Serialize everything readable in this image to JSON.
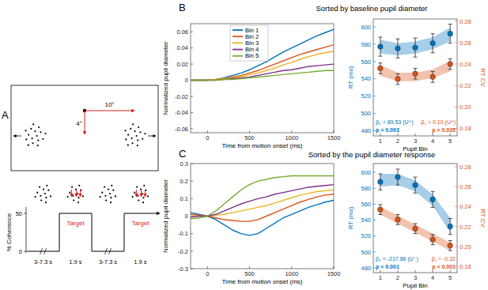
{
  "panel_a": {
    "label": "A",
    "horizontal_offset": "10°",
    "vertical_offset": "4°",
    "y_label": "% Coherence",
    "yticks": [
      0,
      50
    ],
    "epochs": [
      {
        "duration": "3-7.3 s",
        "coherence": 0
      },
      {
        "duration": "1.9 s",
        "coherence": 50,
        "label": "Target"
      },
      {
        "duration": "3-7.3 s",
        "coherence": 0
      },
      {
        "duration": "1.9 s",
        "coherence": 50,
        "label": "Target"
      }
    ]
  },
  "chart_data": [
    {
      "type": "line",
      "panel": "B",
      "title": "Sorted by baseline pupil diameter",
      "x_label": "Time from motion onset (ms)",
      "y_label": "Normalized pupil diameter",
      "x": [
        -200,
        -100,
        0,
        100,
        200,
        300,
        400,
        500,
        600,
        700,
        800,
        900,
        1000,
        1100,
        1200,
        1300,
        1400,
        1500
      ],
      "xlim": [
        -200,
        1500
      ],
      "xticks": [
        0,
        500,
        1000,
        1500
      ],
      "ylim": [
        -0.065,
        0.07
      ],
      "yticks": [
        -0.06,
        -0.04,
        -0.02,
        0,
        0.02,
        0.04,
        0.06
      ],
      "legend": "upper left",
      "series": [
        {
          "name": "Bin 1",
          "color": "#0072BD",
          "values": [
            0,
            0,
            0,
            0.001,
            0.003,
            0.006,
            0.009,
            0.013,
            0.018,
            0.023,
            0.029,
            0.035,
            0.04,
            0.045,
            0.05,
            0.055,
            0.059,
            0.063
          ]
        },
        {
          "name": "Bin 2",
          "color": "#D95319",
          "values": [
            0,
            0,
            0,
            0.001,
            0.002,
            0.004,
            0.006,
            0.009,
            0.012,
            0.016,
            0.02,
            0.024,
            0.028,
            0.032,
            0.035,
            0.038,
            0.041,
            0.044
          ]
        },
        {
          "name": "Bin 3",
          "color": "#EDB120",
          "values": [
            0,
            0,
            0,
            0.001,
            0.002,
            0.003,
            0.005,
            0.007,
            0.009,
            0.012,
            0.015,
            0.019,
            0.022,
            0.026,
            0.029,
            0.032,
            0.034,
            0.036
          ]
        },
        {
          "name": "Bin 4",
          "color": "#7E2F8E",
          "values": [
            0,
            0,
            0,
            0,
            0.001,
            0.002,
            0.003,
            0.004,
            0.006,
            0.008,
            0.01,
            0.012,
            0.013,
            0.015,
            0.017,
            0.018,
            0.019,
            0.02
          ]
        },
        {
          "name": "Bin 5",
          "color": "#77AC30",
          "values": [
            0,
            0,
            0,
            0,
            0.001,
            0.001,
            0.002,
            0.003,
            0.004,
            0.005,
            0.006,
            0.007,
            0.008,
            0.009,
            0.01,
            0.011,
            0.012,
            0.012
          ]
        }
      ]
    },
    {
      "type": "errorbar",
      "x_label": "Pupil Bin",
      "y_label": "RT (ms)",
      "y2_label": "RT CV",
      "x": [
        1,
        2,
        3,
        4,
        5
      ],
      "xlim": [
        0.6,
        5.4
      ],
      "xticks": [
        1,
        2,
        3,
        4,
        5
      ],
      "ylim": [
        474,
        609
      ],
      "yticks": [
        480,
        500,
        520,
        540,
        560,
        580,
        600
      ],
      "y2lim": [
        0.173,
        0.282
      ],
      "y2ticks": [
        0.18,
        {
          "value": 0.2,
          "label": "0.20"
        },
        0.22,
        0.24,
        0.26,
        0.28
      ],
      "series": [
        {
          "color": "#0072BD",
          "marker": "circle",
          "values": [
            577,
            575,
            576,
            581,
            592
          ],
          "errors": [
            11,
            11,
            11,
            11,
            11
          ],
          "fit": [
            577,
            574,
            576,
            581,
            591
          ],
          "fit_band": [
            8,
            7,
            7,
            7,
            8
          ],
          "annotation": "β₂ = 89.53 (U⁺)",
          "p_label": "p = 0.003"
        },
        {
          "color": "#D95319",
          "marker": "circle",
          "axis": "y2",
          "values": [
            0.236,
            0.226,
            0.231,
            0.228,
            0.24
          ],
          "errors": [
            0.005,
            0.005,
            0.005,
            0.005,
            0.005
          ],
          "fit": [
            0.234,
            0.228,
            0.228,
            0.231,
            0.238
          ],
          "fit_band": [
            0.005,
            0.004,
            0.004,
            0.004,
            0.005
          ],
          "annotation": "β₂ = 0.10 (U⁺)",
          "p_label": "p = 0.035"
        }
      ]
    },
    {
      "type": "line",
      "panel": "C",
      "title": "Sorted by the pupil diameter response",
      "x_label": "Time from motion onset (ms)",
      "y_label": "Normalized pupil diameter",
      "x": [
        -200,
        -100,
        0,
        100,
        200,
        300,
        400,
        500,
        600,
        700,
        800,
        900,
        1000,
        1100,
        1200,
        1300,
        1400,
        1500
      ],
      "xlim": [
        -200,
        1500
      ],
      "xticks": [
        0,
        500,
        1000,
        1500
      ],
      "ylim": [
        -0.3,
        0.3
      ],
      "yticks": [
        -0.3,
        -0.2,
        -0.1,
        0,
        0.1,
        0.2,
        0.3
      ],
      "series": [
        {
          "color": "#0072BD",
          "values": [
            0.02,
            0.01,
            0,
            -0.02,
            -0.05,
            -0.08,
            -0.1,
            -0.11,
            -0.1,
            -0.07,
            -0.04,
            -0.01,
            0.01,
            0.03,
            0.05,
            0.065,
            0.08,
            0.09
          ]
        },
        {
          "color": "#D95319",
          "values": [
            0.01,
            0.005,
            0,
            -0.01,
            -0.02,
            -0.025,
            -0.03,
            -0.03,
            -0.02,
            0,
            0.02,
            0.04,
            0.06,
            0.08,
            0.095,
            0.11,
            0.12,
            0.125
          ]
        },
        {
          "color": "#EDB120",
          "values": [
            0,
            0,
            0,
            0.005,
            0.01,
            0.02,
            0.03,
            0.04,
            0.05,
            0.06,
            0.075,
            0.09,
            0.105,
            0.12,
            0.13,
            0.14,
            0.145,
            0.15
          ]
        },
        {
          "color": "#7E2F8E",
          "values": [
            -0.005,
            0,
            0,
            0.01,
            0.03,
            0.05,
            0.07,
            0.085,
            0.1,
            0.11,
            0.125,
            0.135,
            0.145,
            0.155,
            0.165,
            0.17,
            0.175,
            0.18
          ]
        },
        {
          "color": "#77AC30",
          "values": [
            -0.015,
            -0.01,
            0,
            0.03,
            0.07,
            0.11,
            0.15,
            0.18,
            0.2,
            0.21,
            0.22,
            0.225,
            0.23,
            0.23,
            0.23,
            0.23,
            0.23,
            0.23
          ]
        }
      ]
    },
    {
      "type": "errorbar",
      "x_label": "Pupil Bin",
      "y_label": "RT (ms)",
      "y2_label": "RT CV",
      "x": [
        1,
        2,
        3,
        4,
        5
      ],
      "xlim": [
        0.6,
        5.4
      ],
      "xticks": [
        1,
        2,
        3,
        4,
        5
      ],
      "ylim": [
        474,
        611
      ],
      "yticks": [
        480,
        500,
        520,
        540,
        560,
        580,
        600
      ],
      "y2lim": [
        0.174,
        0.283
      ],
      "y2ticks": [
        0.18,
        {
          "value": 0.2,
          "label": "0.20"
        },
        0.22,
        0.24,
        0.26,
        0.28
      ],
      "series": [
        {
          "color": "#0072BD",
          "marker": "circle",
          "values": [
            588,
            594,
            584,
            566,
            532
          ],
          "errors": [
            10,
            10,
            10,
            10,
            10
          ],
          "fit": [
            590,
            591,
            583,
            565,
            534
          ],
          "fit_band": [
            8,
            7,
            7,
            7,
            9
          ],
          "annotation": "β₂ = -217.86 (U⁻)",
          "p_label": "p < 0.001"
        },
        {
          "color": "#D95319",
          "marker": "circle",
          "axis": "y2",
          "values": [
            0.237,
            0.227,
            0.218,
            0.207,
            0.201
          ],
          "errors": [
            0.005,
            0.005,
            0.005,
            0.005,
            0.005
          ],
          "fit": [
            0.236,
            0.227,
            0.218,
            0.209,
            0.2
          ],
          "fit_band": [
            0.004,
            0.004,
            0.004,
            0.004,
            0.004
          ],
          "annotation": "β₁ = -0.32",
          "p_label": "p < 0.001"
        }
      ]
    }
  ]
}
